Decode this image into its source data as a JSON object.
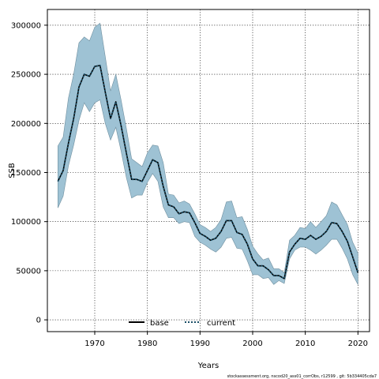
{
  "chart_data": {
    "type": "area",
    "xlabel": "Years",
    "ylabel": "SSB",
    "xlim": [
      1961.0,
      2022.2
    ],
    "ylim": [
      -12000,
      316000
    ],
    "x_ticks": [
      1970,
      1980,
      1990,
      2000,
      2010,
      2020
    ],
    "y_ticks": [
      0,
      50000,
      100000,
      150000,
      200000,
      250000,
      300000
    ],
    "grid": true,
    "legend_position": "bottom-center",
    "legend": [
      {
        "label": "base",
        "style": "solid",
        "color": "#000000"
      },
      {
        "label": "current",
        "style": "dotted",
        "color": "#1a4e66"
      }
    ],
    "band_color": "#9ec2d4",
    "caption": "stockassessment.org, nscod20_ass01_corrObs, r12599 , git: 5b334405cda7",
    "x": [
      1963,
      1964,
      1965,
      1966,
      1967,
      1968,
      1969,
      1970,
      1971,
      1972,
      1973,
      1974,
      1975,
      1976,
      1977,
      1978,
      1979,
      1980,
      1981,
      1982,
      1983,
      1984,
      1985,
      1986,
      1987,
      1988,
      1989,
      1990,
      1991,
      1992,
      1993,
      1994,
      1995,
      1996,
      1997,
      1998,
      1999,
      2000,
      2001,
      2002,
      2003,
      2004,
      2005,
      2006,
      2007,
      2008,
      2009,
      2010,
      2011,
      2012,
      2013,
      2014,
      2015,
      2016,
      2017,
      2018,
      2019,
      2020
    ],
    "series": [
      {
        "name": "current",
        "values": [
          141000,
          152000,
          180000,
          205000,
          237000,
          250000,
          248000,
          258000,
          259000,
          232000,
          205000,
          222000,
          198000,
          170000,
          143000,
          143000,
          141000,
          152000,
          163000,
          160000,
          136000,
          117000,
          115000,
          108000,
          110000,
          109000,
          99000,
          88000,
          85000,
          81000,
          83000,
          90000,
          101000,
          101000,
          89000,
          87000,
          77000,
          62000,
          55000,
          55000,
          51000,
          45000,
          45000,
          42000,
          69000,
          77000,
          83000,
          82000,
          86000,
          82000,
          85000,
          90000,
          99000,
          98000,
          90000,
          80000,
          64000,
          48000
        ],
        "lower": [
          114000,
          126000,
          157000,
          178000,
          203000,
          221000,
          212000,
          221000,
          224000,
          200000,
          183000,
          196000,
          172000,
          145000,
          124000,
          127000,
          127000,
          140000,
          149000,
          141000,
          115000,
          104000,
          104000,
          98000,
          100000,
          99000,
          85000,
          79000,
          76000,
          72000,
          69000,
          74000,
          83000,
          84000,
          73000,
          72000,
          60000,
          46000,
          46000,
          42000,
          43000,
          36000,
          40000,
          37000,
          62000,
          71000,
          74000,
          74000,
          71000,
          67000,
          71000,
          76000,
          82000,
          82000,
          73000,
          62000,
          46000,
          36000
        ],
        "upper": [
          177000,
          186000,
          226000,
          250000,
          282000,
          288000,
          284000,
          298000,
          302000,
          268000,
          233000,
          250000,
          224000,
          195000,
          164000,
          160000,
          156000,
          170000,
          178000,
          177000,
          160000,
          128000,
          127000,
          119000,
          121000,
          118000,
          108000,
          97000,
          94000,
          90000,
          94000,
          102000,
          120000,
          121000,
          104000,
          105000,
          92000,
          75000,
          67000,
          61000,
          63000,
          52000,
          52000,
          48000,
          81000,
          86000,
          94000,
          93000,
          100000,
          94000,
          100000,
          106000,
          120000,
          117000,
          107000,
          97000,
          79000,
          68000
        ]
      }
    ]
  }
}
